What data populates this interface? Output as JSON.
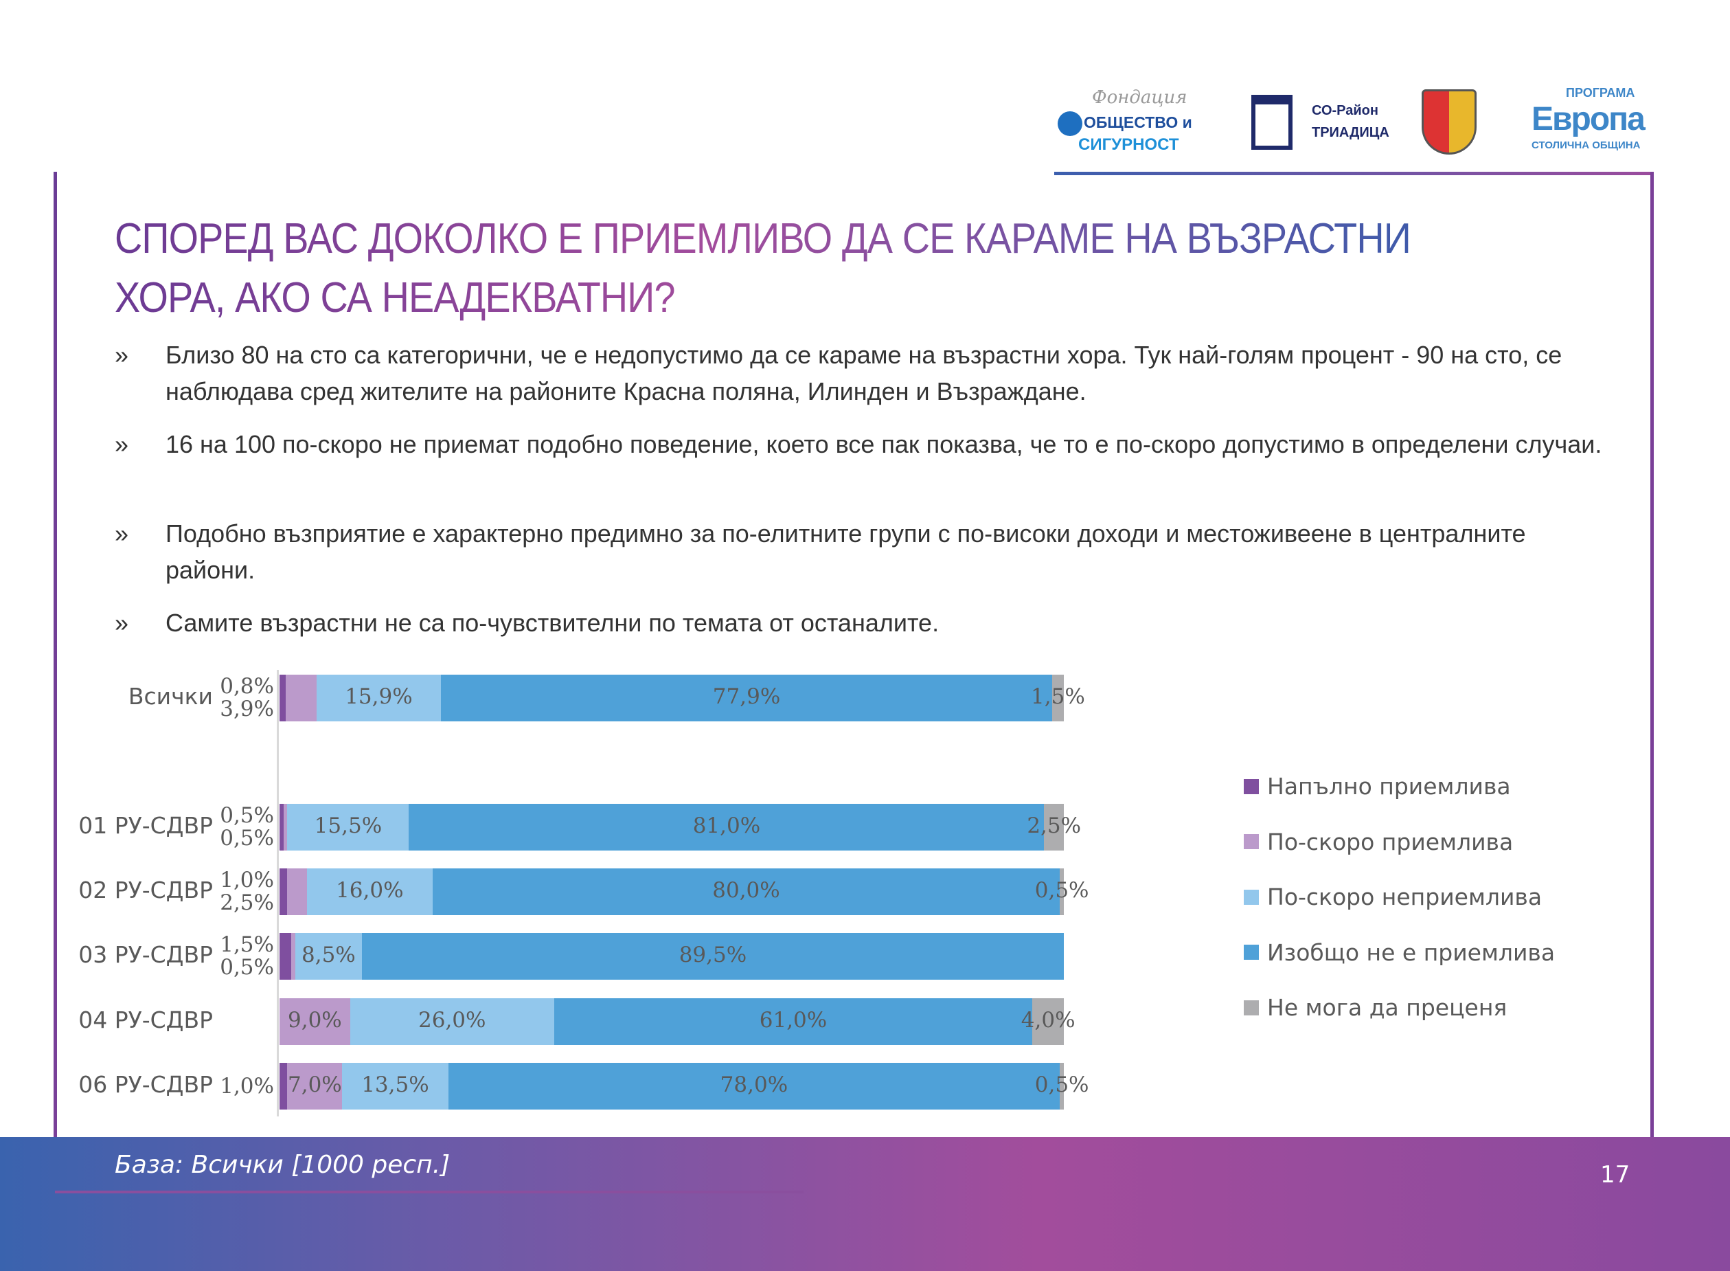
{
  "logos": [
    {
      "name": "fondacia-obshtestvo-i-sigurnost",
      "text": [
        "Фондация",
        "ОБЩЕСТВО и",
        "СИГУРНОСТ"
      ]
    },
    {
      "name": "so-rayon-triaditsa",
      "text": [
        "СО-Район",
        "ТРИАДИЦА"
      ]
    },
    {
      "name": "sofia-coat-of-arms",
      "text": []
    },
    {
      "name": "programa-evropa",
      "text": [
        "ПРОГРАМА",
        "Европа",
        "СТОЛИЧНА ОБЩИНА"
      ]
    }
  ],
  "title": "СПОРЕД ВАС ДОКОЛКО Е ПРИЕМЛИВО ДА СЕ КАРАМЕ НА ВЪЗРАСТНИ ХОРА, АКО СА НЕАДЕКВАТНИ?",
  "bullets": [
    {
      "marker": "»",
      "text": "Близо 80 на сто са категорични, че е недопустимо да се караме на възрастни хора. Тук най-голям процент - 90 на сто, се наблюдава сред жителите на районите Красна поляна, Илинден и Възраждане."
    },
    {
      "marker": "»",
      "text": "16 на 100 по-скоро не приемат подобно поведение, което все пак показва, че то е по-скоро допустимо в определени случаи."
    },
    {
      "marker": "»",
      "text": "Подобно възприятие е характерно предимно за по-елитните групи с по-високи доходи и местоживеене в централните райони."
    },
    {
      "marker": "»",
      "text": "Самите възрастни не са по-чувствителни по темата от останалите."
    }
  ],
  "chart_data": {
    "type": "bar",
    "orientation": "horizontal",
    "stacked": true,
    "unit": "%",
    "xlim": [
      0,
      100
    ],
    "grid": false,
    "legend_position": "right",
    "categories": [
      "Всички",
      "01 РУ-СДВР",
      "02 РУ-СДВР",
      "03 РУ-СДВР",
      "04 РУ-СДВР",
      "06 РУ-СДВР"
    ],
    "series": [
      {
        "name": "Напълно приемлива",
        "color": "#7f4f9f",
        "values": [
          0.8,
          0.5,
          1.0,
          1.5,
          0,
          1.0
        ],
        "labels": [
          "0,8%",
          "0,5%",
          "1,0%",
          "1,5%",
          "",
          "1,0%"
        ]
      },
      {
        "name": "По-скоро приемлива",
        "color": "#bb9acb",
        "values": [
          3.9,
          0.5,
          2.5,
          0.5,
          9.0,
          7.0
        ],
        "labels": [
          "3,9%",
          "0,5%",
          "2,5%",
          "0,5%",
          "9,0%",
          "7,0%"
        ]
      },
      {
        "name": "По-скоро неприемлива",
        "color": "#92c7ec",
        "values": [
          15.9,
          15.5,
          16.0,
          8.5,
          26.0,
          13.5
        ],
        "labels": [
          "15,9%",
          "15,5%",
          "16,0%",
          "8,5%",
          "26,0%",
          "13,5%"
        ]
      },
      {
        "name": "Изобщо не е приемлива",
        "color": "#4fa1d8",
        "values": [
          77.9,
          81.0,
          80.0,
          89.5,
          61.0,
          78.0
        ],
        "labels": [
          "77,9%",
          "81,0%",
          "80,0%",
          "89,5%",
          "61,0%",
          "78,0%"
        ]
      },
      {
        "name": "Не мога да преценя",
        "color": "#adadaf",
        "values": [
          1.5,
          2.5,
          0.5,
          0,
          4.0,
          0.5
        ],
        "labels": [
          "1,5%",
          "2,5%",
          "0,5%",
          "",
          "4,0%",
          "0,5%"
        ]
      }
    ]
  },
  "footer": {
    "base": "База: Всички [1000 респ.]",
    "page_number": "17"
  }
}
